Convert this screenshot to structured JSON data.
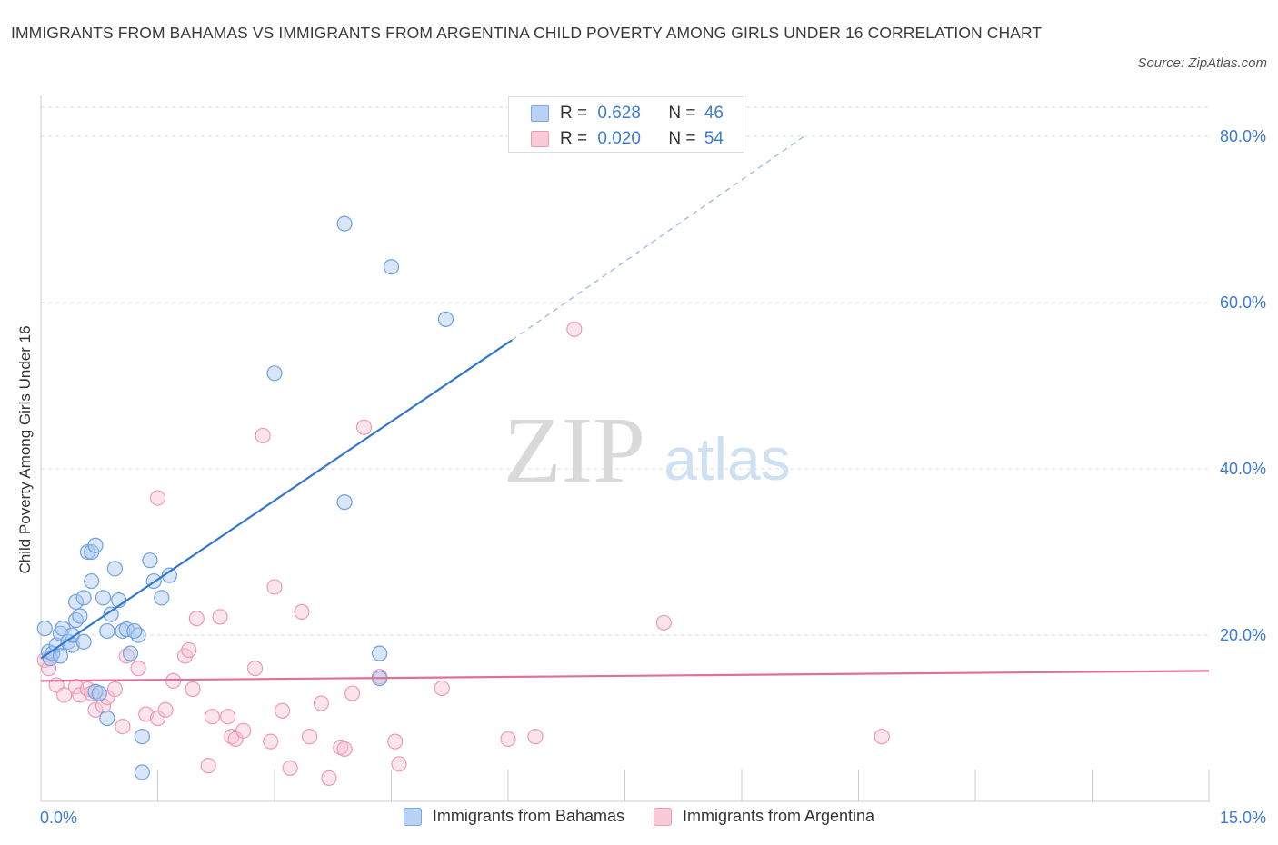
{
  "title": "IMMIGRANTS FROM BAHAMAS VS IMMIGRANTS FROM ARGENTINA CHILD POVERTY AMONG GIRLS UNDER 16 CORRELATION CHART",
  "source": "Source: ZipAtlas.com",
  "watermark": {
    "zip": "ZIP",
    "atlas": "atlas"
  },
  "legend": {
    "rows": [
      {
        "r_label": "R =",
        "r_value": "0.628",
        "n_label": "N =",
        "n_value": "46",
        "color": "#a9c8f0",
        "border": "#7aa7e0"
      },
      {
        "r_label": "R =",
        "r_value": "0.020",
        "n_label": "N =",
        "n_value": "54",
        "color": "#f8c4d4",
        "border": "#ee9ab5"
      }
    ]
  },
  "bottom_legend": [
    {
      "label": "Immigrants from Bahamas",
      "color": "#a9c8f0",
      "border": "#7aa7e0"
    },
    {
      "label": "Immigrants from Argentina",
      "color": "#f8c4d4",
      "border": "#ee9ab5"
    }
  ],
  "x_tick_left": "0.0%",
  "x_tick_right": "15.0%",
  "chart_data": {
    "type": "scatter",
    "title": "IMMIGRANTS FROM BAHAMAS VS IMMIGRANTS FROM ARGENTINA CHILD POVERTY AMONG GIRLS UNDER 16 CORRELATION CHART",
    "xlabel": "",
    "ylabel": "Child Poverty Among Girls Under 16",
    "xlim": [
      0,
      15
    ],
    "ylim": [
      0,
      80
    ],
    "y_ticks": [
      20,
      40,
      60,
      80
    ],
    "y_tick_labels": [
      "20.0%",
      "40.0%",
      "60.0%",
      "80.0%"
    ],
    "grid": true,
    "series": [
      {
        "name": "Immigrants from Bahamas",
        "color": "#6fa0e0",
        "line_color": "#3377cc",
        "trend": {
          "x0": 0.0,
          "y0": 17.2,
          "x1": 6.05,
          "y1": 55.5,
          "dash_to_x": 9.8,
          "dash_to_y": 80.0
        },
        "points": [
          [
            0.05,
            20.8
          ],
          [
            0.1,
            18.0
          ],
          [
            0.12,
            17.2
          ],
          [
            0.15,
            17.8
          ],
          [
            0.2,
            18.8
          ],
          [
            0.25,
            20.2
          ],
          [
            0.25,
            17.5
          ],
          [
            0.28,
            20.8
          ],
          [
            0.35,
            19.2
          ],
          [
            0.4,
            18.8
          ],
          [
            0.4,
            20.0
          ],
          [
            0.45,
            24.0
          ],
          [
            0.45,
            21.8
          ],
          [
            0.5,
            22.3
          ],
          [
            0.55,
            24.5
          ],
          [
            0.55,
            19.2
          ],
          [
            0.6,
            30.0
          ],
          [
            0.65,
            30.0
          ],
          [
            0.65,
            26.5
          ],
          [
            0.7,
            30.8
          ],
          [
            0.7,
            13.2
          ],
          [
            0.75,
            13.0
          ],
          [
            0.8,
            24.5
          ],
          [
            0.85,
            20.5
          ],
          [
            0.9,
            22.5
          ],
          [
            0.95,
            28.0
          ],
          [
            1.0,
            24.2
          ],
          [
            1.05,
            20.5
          ],
          [
            1.1,
            20.7
          ],
          [
            1.15,
            17.8
          ],
          [
            1.25,
            20.0
          ],
          [
            1.4,
            29.0
          ],
          [
            1.45,
            26.5
          ],
          [
            1.55,
            24.5
          ],
          [
            0.85,
            10.0
          ],
          [
            1.3,
            7.8
          ],
          [
            1.3,
            3.5
          ],
          [
            3.0,
            51.5
          ],
          [
            3.9,
            36.0
          ],
          [
            3.9,
            69.5
          ],
          [
            4.5,
            64.3
          ],
          [
            5.2,
            58.0
          ],
          [
            4.35,
            14.8
          ],
          [
            4.35,
            17.8
          ],
          [
            1.65,
            27.2
          ],
          [
            1.2,
            20.5
          ]
        ]
      },
      {
        "name": "Immigrants from Argentina",
        "color": "#f0a0bc",
        "line_color": "#e0709a",
        "trend": {
          "x0": 0.0,
          "y0": 14.5,
          "x1": 15.0,
          "y1": 15.7
        },
        "points": [
          [
            0.05,
            17.0
          ],
          [
            0.1,
            16.0
          ],
          [
            0.2,
            14.0
          ],
          [
            0.3,
            12.8
          ],
          [
            0.45,
            13.8
          ],
          [
            0.5,
            12.8
          ],
          [
            0.6,
            13.5
          ],
          [
            0.65,
            13.0
          ],
          [
            0.7,
            11.0
          ],
          [
            0.8,
            11.5
          ],
          [
            0.85,
            12.5
          ],
          [
            0.95,
            13.5
          ],
          [
            1.05,
            9.0
          ],
          [
            1.1,
            17.5
          ],
          [
            1.25,
            16.0
          ],
          [
            1.35,
            10.5
          ],
          [
            1.5,
            36.5
          ],
          [
            1.5,
            10.0
          ],
          [
            1.6,
            11.0
          ],
          [
            1.7,
            14.5
          ],
          [
            1.85,
            17.5
          ],
          [
            1.9,
            18.2
          ],
          [
            1.95,
            13.5
          ],
          [
            2.0,
            22.0
          ],
          [
            2.15,
            4.3
          ],
          [
            2.2,
            10.2
          ],
          [
            2.3,
            22.2
          ],
          [
            2.4,
            10.2
          ],
          [
            2.45,
            7.8
          ],
          [
            2.5,
            7.5
          ],
          [
            2.6,
            8.5
          ],
          [
            2.75,
            16.0
          ],
          [
            2.85,
            44.0
          ],
          [
            2.95,
            7.2
          ],
          [
            3.0,
            25.8
          ],
          [
            3.1,
            10.9
          ],
          [
            3.2,
            4.0
          ],
          [
            3.35,
            22.8
          ],
          [
            3.45,
            7.8
          ],
          [
            3.6,
            11.8
          ],
          [
            3.7,
            2.8
          ],
          [
            3.85,
            6.5
          ],
          [
            3.9,
            6.3
          ],
          [
            4.0,
            13.0
          ],
          [
            4.15,
            45.0
          ],
          [
            4.35,
            15.0
          ],
          [
            4.55,
            7.2
          ],
          [
            4.6,
            4.5
          ],
          [
            5.15,
            13.6
          ],
          [
            6.0,
            7.5
          ],
          [
            6.35,
            7.8
          ],
          [
            6.85,
            56.8
          ],
          [
            8.0,
            21.5
          ],
          [
            10.8,
            7.8
          ]
        ]
      }
    ]
  }
}
